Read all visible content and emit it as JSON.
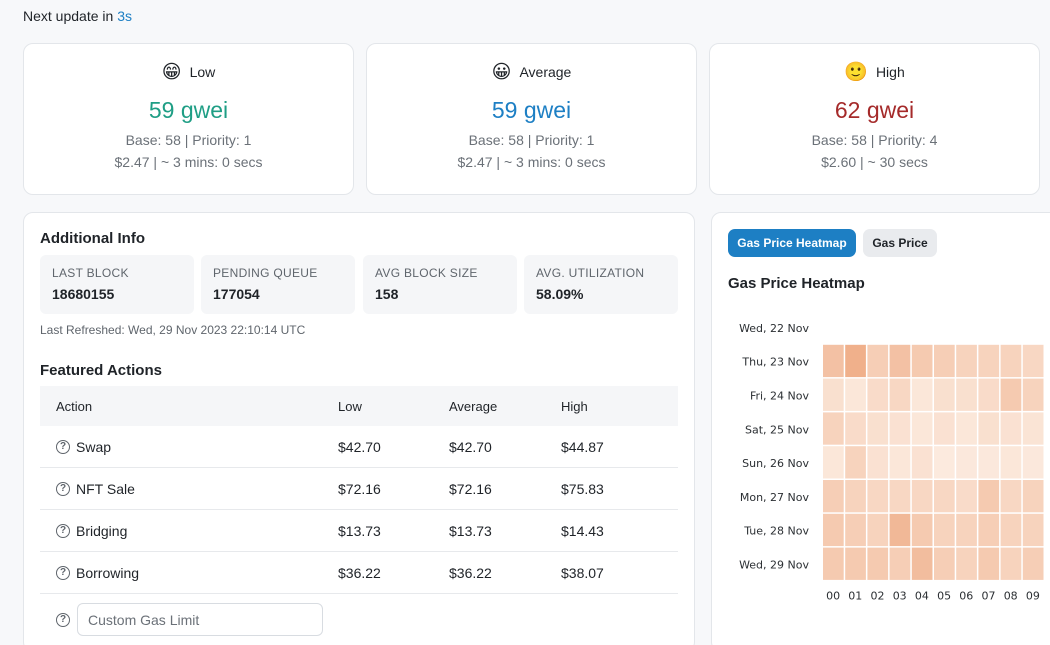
{
  "header": {
    "next_update_prefix": "Next update in",
    "next_update_value": "3s"
  },
  "tiers": [
    {
      "emoji": "😁",
      "label": "Low",
      "price": "59 gwei",
      "color": "#1f9e85",
      "base_priority": "Base: 58 | Priority: 1",
      "cost_time": "$2.47 | ~ 3 mins: 0 secs"
    },
    {
      "emoji": "😀",
      "label": "Average",
      "price": "59 gwei",
      "color": "#1d7fc4",
      "base_priority": "Base: 58 | Priority: 1",
      "cost_time": "$2.47 | ~ 3 mins: 0 secs"
    },
    {
      "emoji": "🙂",
      "label": "High",
      "price": "62 gwei",
      "color": "#a52a2a",
      "base_priority": "Base: 58 | Priority: 4",
      "cost_time": "$2.60 | ~ 30 secs"
    }
  ],
  "additional_info": {
    "title": "Additional Info",
    "stats": [
      {
        "label": "LAST BLOCK",
        "value": "18680155"
      },
      {
        "label": "PENDING QUEUE",
        "value": "177054"
      },
      {
        "label": "AVG BLOCK SIZE",
        "value": "158"
      },
      {
        "label": "AVG. UTILIZATION",
        "value": "58.09%"
      }
    ],
    "last_refreshed": "Last Refreshed: Wed, 29 Nov 2023 22:10:14 UTC"
  },
  "featured_actions": {
    "title": "Featured Actions",
    "columns": [
      "Action",
      "Low",
      "Average",
      "High"
    ],
    "rows": [
      {
        "action": "Swap",
        "low": "$42.70",
        "average": "$42.70",
        "high": "$44.87"
      },
      {
        "action": "NFT Sale",
        "low": "$72.16",
        "average": "$72.16",
        "high": "$75.83"
      },
      {
        "action": "Bridging",
        "low": "$13.73",
        "average": "$13.73",
        "high": "$14.43"
      },
      {
        "action": "Borrowing",
        "low": "$36.22",
        "average": "$36.22",
        "high": "$38.07"
      }
    ],
    "custom_gas_placeholder": "Custom Gas Limit"
  },
  "heatmap_panel": {
    "tabs": [
      {
        "label": "Gas Price Heatmap",
        "active": true
      },
      {
        "label": "Gas Price",
        "active": false
      }
    ],
    "title": "Gas Price Heatmap"
  },
  "chart_data": {
    "type": "heatmap",
    "title": "Gas Price Heatmap",
    "days": [
      "Wed, 22 Nov",
      "Thu, 23 Nov",
      "Fri, 24 Nov",
      "Sat, 25 Nov",
      "Sun, 26 Nov",
      "Mon, 27 Nov",
      "Tue, 28 Nov",
      "Wed, 29 Nov"
    ],
    "hours": [
      "00",
      "01",
      "02",
      "03",
      "04",
      "05",
      "06",
      "07",
      "08",
      "09"
    ],
    "intensity": [
      [
        null,
        null,
        null,
        null,
        null,
        null,
        null,
        null,
        null,
        null
      ],
      [
        0.55,
        0.75,
        0.4,
        0.55,
        0.45,
        0.4,
        0.35,
        0.35,
        0.35,
        0.3
      ],
      [
        0.2,
        0.12,
        0.25,
        0.3,
        0.12,
        0.2,
        0.2,
        0.25,
        0.45,
        0.35
      ],
      [
        0.35,
        0.25,
        0.2,
        0.18,
        0.12,
        0.18,
        0.12,
        0.2,
        0.18,
        0.15
      ],
      [
        0.12,
        0.35,
        0.18,
        0.12,
        0.18,
        0.08,
        0.1,
        0.1,
        0.12,
        0.1
      ],
      [
        0.4,
        0.35,
        0.3,
        0.3,
        0.3,
        0.3,
        0.25,
        0.45,
        0.3,
        0.35
      ],
      [
        0.45,
        0.4,
        0.35,
        0.65,
        0.45,
        0.35,
        0.35,
        0.4,
        0.35,
        0.35
      ],
      [
        0.45,
        0.45,
        0.45,
        0.4,
        0.6,
        0.4,
        0.35,
        0.45,
        0.35,
        0.4
      ]
    ],
    "color_low": "#fdf1e8",
    "color_high": "#eb9a6c"
  }
}
